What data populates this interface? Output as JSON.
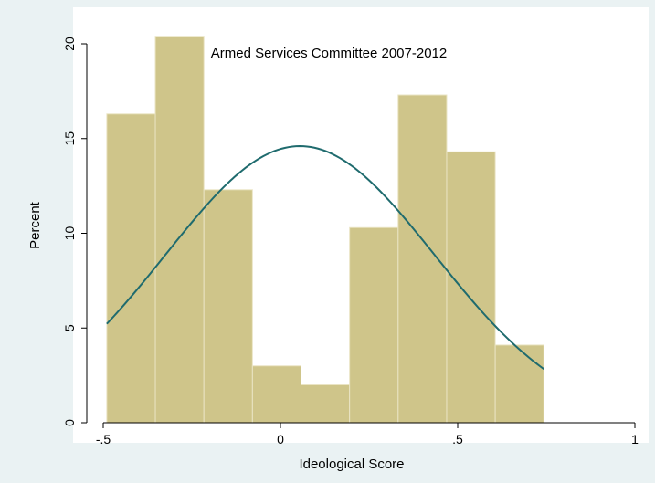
{
  "chart_data": {
    "type": "bar",
    "title": "Armed Services Committee 2007-2012",
    "xlabel": "Ideological Score",
    "ylabel": "Percent",
    "xlim": [
      -0.5,
      1
    ],
    "ylim": [
      0,
      20
    ],
    "x_ticks": [
      -0.5,
      0,
      0.5,
      1
    ],
    "x_tick_labels": [
      "-.5",
      "0",
      ".5",
      "1"
    ],
    "y_ticks": [
      0,
      5,
      10,
      15,
      20
    ],
    "y_tick_labels": [
      "0",
      "5",
      "10",
      "15",
      "20"
    ],
    "bins": [
      {
        "x0": -0.49,
        "x1": -0.353,
        "value": 16.3
      },
      {
        "x0": -0.353,
        "x1": -0.216,
        "value": 20.4
      },
      {
        "x0": -0.216,
        "x1": -0.079,
        "value": 12.3
      },
      {
        "x0": -0.079,
        "x1": 0.058,
        "value": 3.0
      },
      {
        "x0": 0.058,
        "x1": 0.195,
        "value": 2.0
      },
      {
        "x0": 0.195,
        "x1": 0.332,
        "value": 10.3
      },
      {
        "x0": 0.332,
        "x1": 0.469,
        "value": 17.3
      },
      {
        "x0": 0.469,
        "x1": 0.606,
        "value": 14.3
      },
      {
        "x0": 0.606,
        "x1": 0.743,
        "value": 4.1
      }
    ],
    "normal_curve": {
      "mean": 0.055,
      "sd": 0.38,
      "peak": 14.6,
      "x_range": [
        -0.49,
        0.743
      ]
    },
    "grid": false,
    "colors": {
      "bar_fill": "#cfc58a",
      "bar_stroke": "#eae4c4",
      "curve": "#1f6b6e",
      "plot_bg": "#ffffff",
      "outer_bg": "#eaf2f3"
    }
  }
}
